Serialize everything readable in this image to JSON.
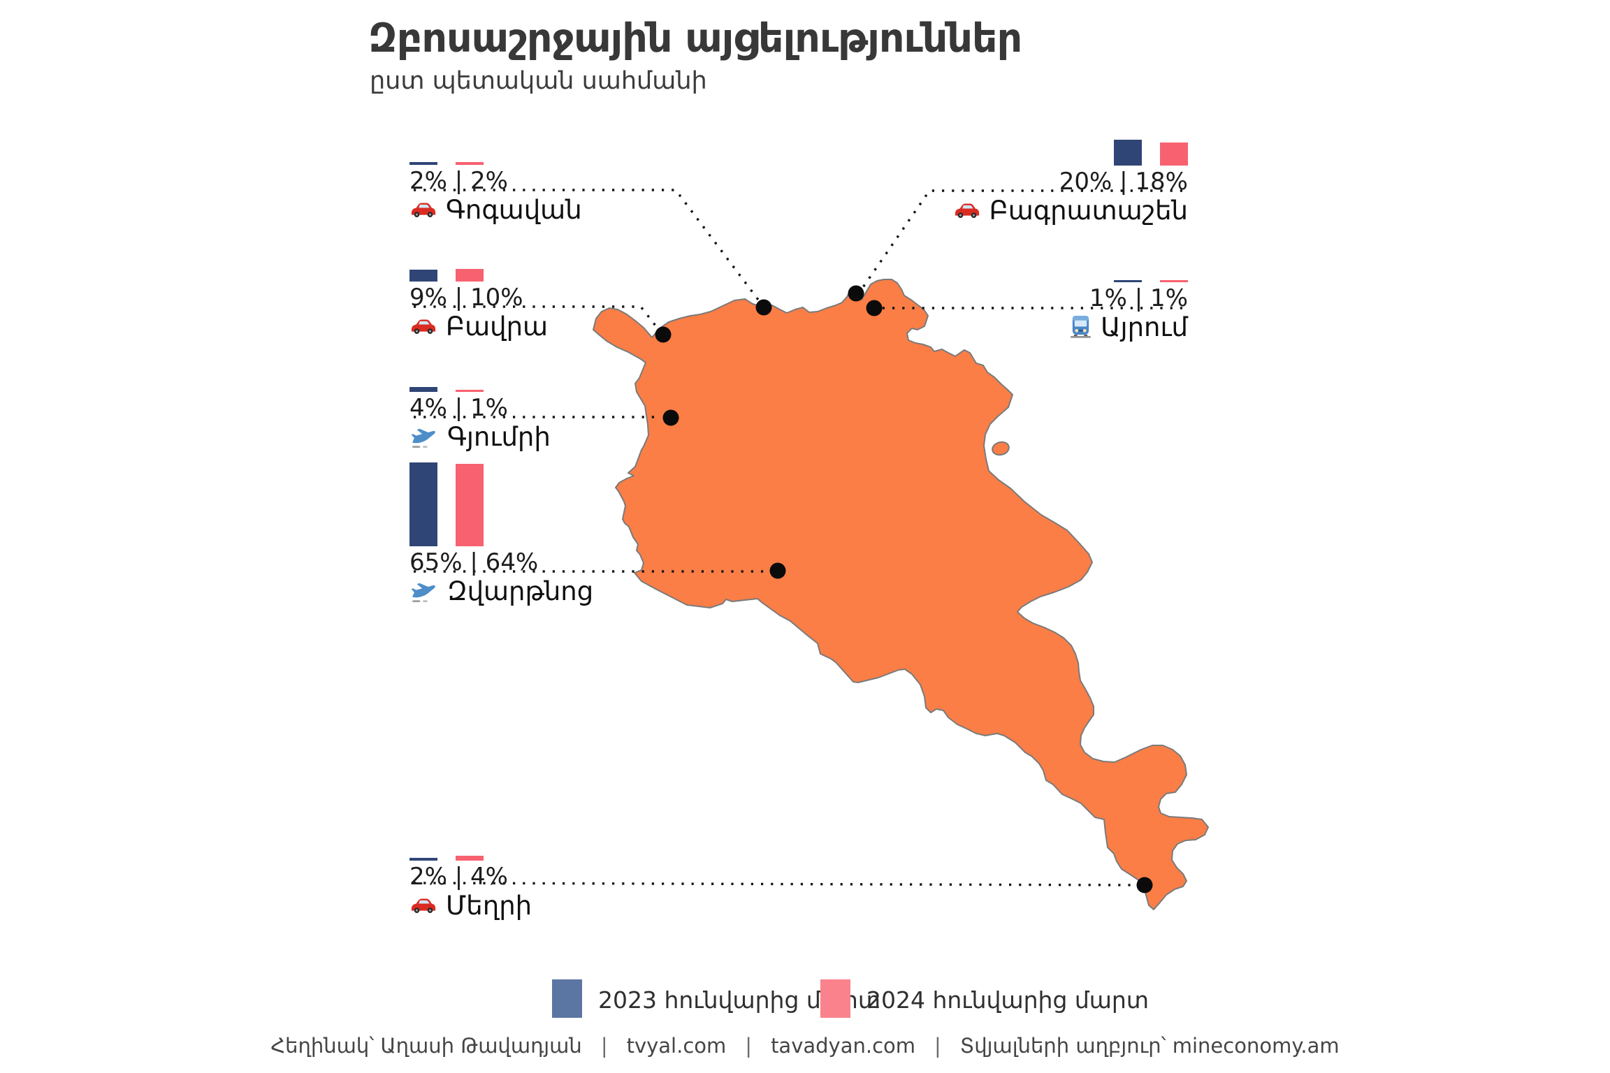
{
  "title": "Զբոսաշրջային այցելություններ",
  "subtitle": "ըստ պետական սահմանի",
  "stations": [
    {
      "id": "gogavan",
      "name": "Գոգավան",
      "transport": "car",
      "display": "2% | 2%",
      "v2023": 2,
      "v2024": 2
    },
    {
      "id": "bagratashen",
      "name": "Բագրատաշեն",
      "transport": "car",
      "display": "20% | 18%",
      "v2023": 20,
      "v2024": 18
    },
    {
      "id": "bavra",
      "name": "Բավրա",
      "transport": "car",
      "display": "9% | 10%",
      "v2023": 9,
      "v2024": 10
    },
    {
      "id": "ayrum",
      "name": "Այրում",
      "transport": "train",
      "display": "1% | 1%",
      "v2023": 1,
      "v2024": 1
    },
    {
      "id": "gyumri",
      "name": "Գյումրի",
      "transport": "plane",
      "display": "4% | 1%",
      "v2023": 4,
      "v2024": 1
    },
    {
      "id": "zvartnots",
      "name": "Զվարթնոց",
      "transport": "plane",
      "display": "65% | 64%",
      "v2023": 65,
      "v2024": 64
    },
    {
      "id": "meghri",
      "name": "Մեղրի",
      "transport": "car",
      "display": "2% | 4%",
      "v2023": 2,
      "v2024": 4
    }
  ],
  "legend": {
    "item2023": "2023 հունվարից մարտ",
    "item2024": "2024 հունվարից մարտ"
  },
  "colors": {
    "bar2023": "#2f4576",
    "bar2024": "#f8616f",
    "legend2023": "#5b76a2",
    "legend2024": "#f9828c",
    "map_fill": "#fb7e46",
    "map_border": "#7a7a7a",
    "dot": "#0b0b0b"
  },
  "footer": {
    "author": "Հեղինակ՝ Աղասի Թավադյան",
    "sep": "|",
    "site1": "tvyal.com",
    "site2": "tavadyan.com",
    "source": "Տվյալների աղբյուր՝ mineconomy.am"
  },
  "chart_data": {
    "type": "bar",
    "map_region": "Armenia (state border crossings)",
    "title": "Զբոսաշրջային այցելություններ",
    "subtitle": "ըստ պետական սահմանի",
    "unit": "%",
    "categories": [
      "Գոգավան",
      "Բագրատաշեն",
      "Բավրա",
      "Այրում",
      "Գյումրի",
      "Զվարթնոց",
      "Մեղրի"
    ],
    "transport_modes": [
      "car",
      "car",
      "car",
      "train",
      "plane",
      "plane",
      "car"
    ],
    "series": [
      {
        "name": "2023 հունվարից մարտ",
        "values": [
          2,
          20,
          9,
          1,
          4,
          65,
          2
        ]
      },
      {
        "name": "2024 հունվարից մարտ",
        "values": [
          2,
          18,
          10,
          1,
          1,
          64,
          4
        ]
      }
    ],
    "legend_position": "bottom",
    "grid": false
  }
}
